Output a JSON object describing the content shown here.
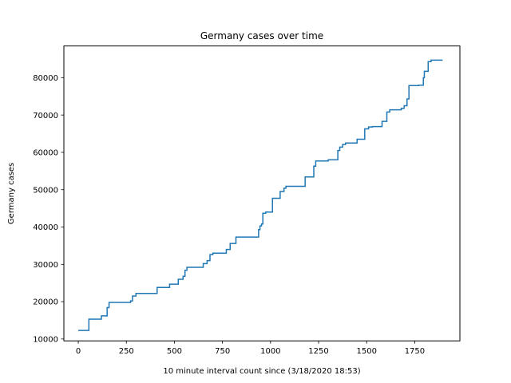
{
  "chart_data": {
    "type": "line",
    "title": "Germany cases over time",
    "xlabel": "10 minute interval count since (3/18/2020 18:53)",
    "ylabel": "Germany cases",
    "xlim": [
      -75,
      1985
    ],
    "ylim": [
      9500,
      88500
    ],
    "xticks": [
      0,
      250,
      500,
      750,
      1000,
      1250,
      1500,
      1750
    ],
    "xtick_labels": [
      "0",
      "250",
      "500",
      "750",
      "1000",
      "1250",
      "1500",
      "1750"
    ],
    "yticks": [
      10000,
      20000,
      30000,
      40000,
      50000,
      60000,
      70000,
      80000
    ],
    "ytick_labels": [
      "10000",
      "20000",
      "30000",
      "40000",
      "50000",
      "60000",
      "70000",
      "80000"
    ],
    "grid": false,
    "line_color": "#1f77b4",
    "series": [
      {
        "step": true,
        "x": [
          0,
          55,
          120,
          150,
          160,
          272,
          282,
          300,
          410,
          475,
          520,
          545,
          555,
          565,
          650,
          670,
          685,
          700,
          770,
          790,
          820,
          840,
          938,
          945,
          953,
          960,
          975,
          1008,
          1010,
          1050,
          1070,
          1080,
          1090,
          1100,
          1180,
          1225,
          1235,
          1300,
          1350,
          1360,
          1375,
          1390,
          1450,
          1490,
          1510,
          1530,
          1580,
          1605,
          1620,
          1680,
          1695,
          1710,
          1720,
          1770,
          1795,
          1800,
          1805,
          1820,
          1835,
          1895
        ],
        "y": [
          12300,
          15300,
          16200,
          18400,
          19800,
          20200,
          21500,
          22200,
          23800,
          24700,
          26000,
          26800,
          28400,
          29200,
          30200,
          31000,
          32600,
          33000,
          34000,
          35600,
          37300,
          37300,
          39300,
          40300,
          40800,
          43700,
          44000,
          44000,
          47700,
          49500,
          50400,
          50900,
          50900,
          50900,
          53400,
          56300,
          57700,
          58000,
          60500,
          61400,
          62100,
          62500,
          63500,
          66300,
          66800,
          66900,
          68300,
          70800,
          71400,
          71800,
          72500,
          74300,
          77900,
          78000,
          80000,
          81700,
          81700,
          84300,
          84700,
          84700
        ]
      }
    ]
  }
}
